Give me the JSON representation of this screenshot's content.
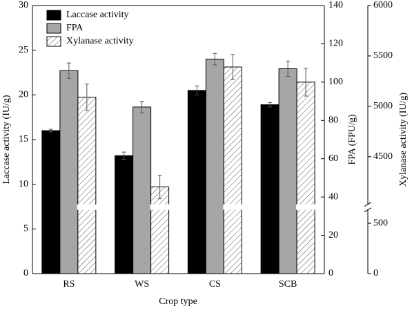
{
  "chart_data": {
    "type": "bar",
    "x_label": "Crop type",
    "y_label": "Laccase activity (IU/g)",
    "y2_label": "FPA (FPU/g)",
    "y3_label": "Xylanase activity (IU/g)",
    "categories": [
      "RS",
      "WS",
      "CS",
      "SCB"
    ],
    "series": [
      {
        "name": "Laccase activity",
        "color": "#000000",
        "values": [
          16.0,
          13.2,
          20.5,
          18.9
        ],
        "errors": [
          0.15,
          0.4,
          0.5,
          0.25
        ]
      },
      {
        "name": "FPA",
        "color": "#a6a6a6",
        "axis": "y2",
        "values": [
          106,
          87,
          112,
          107
        ],
        "errors": [
          4,
          3,
          3,
          4
        ]
      },
      {
        "name": "Xylanase activity",
        "color": "#ffffff",
        "pattern": "hatch",
        "axis": "y3",
        "values": [
          5090,
          4200,
          5390,
          5240
        ],
        "errors": [
          130,
          117,
          124,
          138
        ]
      }
    ],
    "ylim": [
      0,
      30
    ],
    "yticks": [
      0,
      5,
      10,
      15,
      20,
      25,
      30
    ],
    "y2lim": [
      0,
      140
    ],
    "y2ticks": [
      0,
      20,
      40,
      60,
      80,
      100,
      120,
      140
    ],
    "y3lim": [
      0,
      6000
    ],
    "y3break": [
      660,
      4000
    ],
    "y3ticks": [
      0,
      500,
      4500,
      5000,
      5500,
      6000
    ],
    "legend": "upper left"
  }
}
